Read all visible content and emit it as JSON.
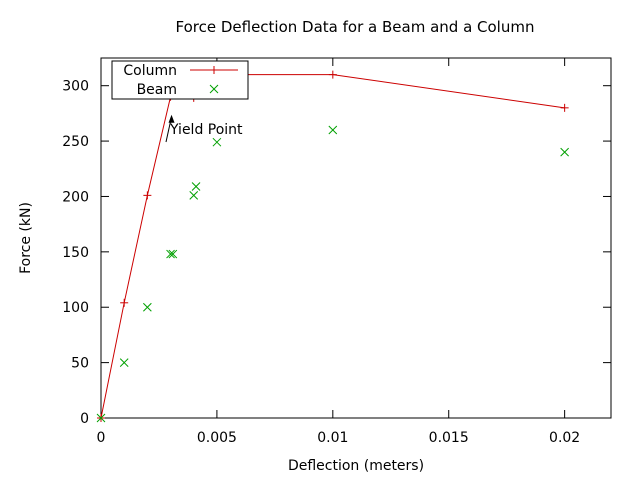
{
  "chart_data": {
    "type": "line",
    "title": "Force Deflection Data for a Beam and a Column",
    "xlabel": "Deflection (meters)",
    "ylabel": "Force (kN)",
    "xlim": [
      0,
      0.022
    ],
    "ylim": [
      0,
      325
    ],
    "x_ticks": [
      0,
      0.005,
      0.01,
      0.015,
      0.02
    ],
    "x_tick_labels": [
      "0",
      "0.005",
      "0.01",
      "0.015",
      "0.02"
    ],
    "y_ticks": [
      0,
      50,
      100,
      150,
      200,
      250,
      300
    ],
    "y_tick_labels": [
      "0",
      "50",
      "100",
      "150",
      "200",
      "250",
      "300"
    ],
    "grid": false,
    "legend_position": "top-left",
    "series": [
      {
        "name": "Column",
        "style": "linespoints",
        "marker": "+",
        "color": "#cc0000",
        "x": [
          0,
          0.001,
          0.002,
          0.003,
          0.004,
          0.005,
          0.01,
          0.02
        ],
        "y": [
          0,
          104,
          201,
          290,
          289,
          310,
          310,
          280
        ]
      },
      {
        "name": "Beam",
        "style": "points",
        "marker": "x",
        "color": "#00a000",
        "x": [
          0,
          0.001,
          0.002,
          0.003,
          0.0031,
          0.004,
          0.0041,
          0.0048,
          0.005,
          0.01,
          0.02
        ],
        "y": [
          0,
          50,
          100,
          148,
          148,
          201,
          209,
          296,
          249,
          260,
          240
        ]
      }
    ],
    "annotations": [
      {
        "text": "Yield Point",
        "x": 0.003,
        "y": 290
      }
    ]
  }
}
